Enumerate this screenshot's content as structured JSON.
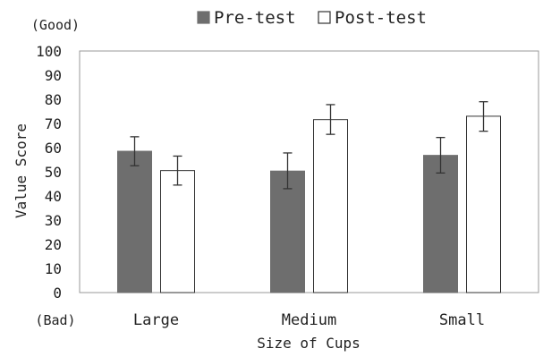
{
  "chart_data": {
    "type": "bar",
    "title": "",
    "xlabel": "Size of Cups",
    "ylabel": "Value Score",
    "ylim": [
      0,
      100
    ],
    "yticks": [
      0,
      10,
      20,
      30,
      40,
      50,
      60,
      70,
      80,
      90,
      100
    ],
    "categories": [
      "Large",
      "Medium",
      "Small"
    ],
    "series": [
      {
        "name": "Pre-test",
        "values": [
          58.5,
          50.3,
          56.8
        ],
        "error_low": [
          52.5,
          43.0,
          49.5
        ],
        "error_high": [
          64.5,
          57.8,
          64.2
        ],
        "color": "#6e6e6e"
      },
      {
        "name": "Post-test",
        "values": [
          50.5,
          71.6,
          73.0
        ],
        "error_low": [
          44.5,
          65.5,
          66.8
        ],
        "error_high": [
          56.5,
          77.8,
          79.0
        ],
        "color": "#ffffff"
      }
    ],
    "legend_position": "top-center",
    "annotations": {
      "top": "(Good)",
      "bottom": "(Bad)"
    },
    "grid": false
  }
}
